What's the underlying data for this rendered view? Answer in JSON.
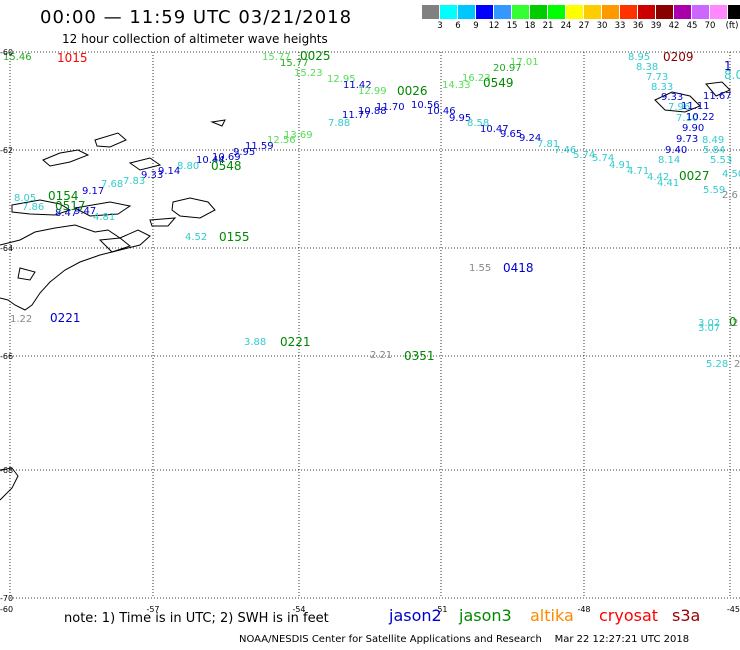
{
  "header": {
    "title": "00:00 — 11:59 UTC 03/21/2018",
    "subtitle": "12 hour collection of altimeter wave heights"
  },
  "colorbar": {
    "colors": [
      "#808080",
      "#00ffff",
      "#00c8ff",
      "#0000ff",
      "#3399ff",
      "#33ff33",
      "#00cc00",
      "#00ff00",
      "#ffff00",
      "#ffcc00",
      "#ff9900",
      "#ff3300",
      "#cc0000",
      "#880000",
      "#aa00aa",
      "#cc66ff",
      "#ff88ff",
      "#000000"
    ],
    "labels": [
      "3",
      "6",
      "9",
      "12",
      "15",
      "18",
      "21",
      "24",
      "27",
      "30",
      "33",
      "36",
      "39",
      "42",
      "45",
      "70",
      "(ft)"
    ]
  },
  "map": {
    "lat_labels": [
      "-60",
      "-62",
      "-64",
      "-66",
      "-68",
      "-70"
    ],
    "lon_labels": [
      "-60",
      "-57",
      "-54",
      "-51",
      "-48",
      "-45"
    ],
    "grid_lines": true
  },
  "observations": [
    {
      "text": "15.46",
      "color": "#22aa22"
    },
    {
      "text": "8.95",
      "color": "#33cccc"
    },
    {
      "text": "8.38",
      "color": "#33cccc"
    },
    {
      "text": "7.73",
      "color": "#33cccc"
    },
    {
      "text": "8.33",
      "color": "#33cccc"
    },
    {
      "text": "9.33",
      "color": "#0000cc"
    },
    {
      "text": "7.96",
      "color": "#33cccc"
    },
    {
      "text": "7.10",
      "color": "#33cccc"
    },
    {
      "text": "11.67",
      "color": "#0000cc"
    },
    {
      "text": "11.11",
      "color": "#0000cc"
    },
    {
      "text": "10.22",
      "color": "#0000cc"
    },
    {
      "text": "9.90",
      "color": "#0000cc"
    },
    {
      "text": "9.73",
      "color": "#0000cc"
    },
    {
      "text": "9.40",
      "color": "#0000cc"
    },
    {
      "text": "8.14",
      "color": "#33cccc"
    },
    {
      "text": "5.84",
      "color": "#33cccc"
    },
    {
      "text": "5.53",
      "color": "#33cccc"
    },
    {
      "text": "8.49",
      "color": "#33cccc"
    },
    {
      "text": "4.50",
      "color": "#33cccc"
    },
    {
      "text": "5.59",
      "color": "#33cccc"
    },
    {
      "text": "2.6",
      "color": "#888888"
    },
    {
      "text": "15.77",
      "color": "#55dd55"
    },
    {
      "text": "15.77",
      "color": "#22aa22"
    },
    {
      "text": "15.23",
      "color": "#55dd55"
    },
    {
      "text": "12.95",
      "color": "#55dd55"
    },
    {
      "text": "11.42",
      "color": "#0000cc"
    },
    {
      "text": "12.99",
      "color": "#55dd55"
    },
    {
      "text": "11.70",
      "color": "#0000cc"
    },
    {
      "text": "10.56",
      "color": "#0000cc"
    },
    {
      "text": "10.46",
      "color": "#0000cc"
    },
    {
      "text": "9.95",
      "color": "#0000cc"
    },
    {
      "text": "8.58",
      "color": "#33cccc"
    },
    {
      "text": "10.47",
      "color": "#0000cc"
    },
    {
      "text": "9.65",
      "color": "#0000cc"
    },
    {
      "text": "9.24",
      "color": "#0000cc"
    },
    {
      "text": "7.81",
      "color": "#33cccc"
    },
    {
      "text": "7.46",
      "color": "#33cccc"
    },
    {
      "text": "5.74",
      "color": "#33cccc"
    },
    {
      "text": "5.74",
      "color": "#33cccc"
    },
    {
      "text": "4.91",
      "color": "#33cccc"
    },
    {
      "text": "4.71",
      "color": "#33cccc"
    },
    {
      "text": "4.42",
      "color": "#33cccc"
    },
    {
      "text": "4.41",
      "color": "#33cccc"
    },
    {
      "text": "16.23",
      "color": "#55dd55"
    },
    {
      "text": "14.33",
      "color": "#55dd55"
    },
    {
      "text": "17.01",
      "color": "#55dd55"
    },
    {
      "text": "20.97",
      "color": "#22aa22"
    },
    {
      "text": "11.77",
      "color": "#0000cc"
    },
    {
      "text": "10.88",
      "color": "#0000cc"
    },
    {
      "text": "7.88",
      "color": "#33cccc"
    },
    {
      "text": "13.69",
      "color": "#55dd55"
    },
    {
      "text": "12.56",
      "color": "#55dd55"
    },
    {
      "text": "11.59",
      "color": "#0000cc"
    },
    {
      "text": "9.95",
      "color": "#0000cc"
    },
    {
      "text": "10.69",
      "color": "#0000cc"
    },
    {
      "text": "10.44",
      "color": "#0000cc"
    },
    {
      "text": "8.80",
      "color": "#33cccc"
    },
    {
      "text": "9.14",
      "color": "#0000cc"
    },
    {
      "text": "9.33",
      "color": "#0000cc"
    },
    {
      "text": "7.83",
      "color": "#33cccc"
    },
    {
      "text": "7.68",
      "color": "#33cccc"
    },
    {
      "text": "9.17",
      "color": "#0000cc"
    },
    {
      "text": "8.05",
      "color": "#33cccc"
    },
    {
      "text": "7.86",
      "color": "#33cccc"
    },
    {
      "text": "8.47",
      "color": "#0000cc"
    },
    {
      "text": "9.47",
      "color": "#0000cc"
    },
    {
      "text": "4.81",
      "color": "#33cccc"
    },
    {
      "text": "4.52",
      "color": "#33cccc"
    },
    {
      "text": "1.55",
      "color": "#888888"
    },
    {
      "text": "1.22",
      "color": "#888888"
    },
    {
      "text": "3.88",
      "color": "#33cccc"
    },
    {
      "text": "2.21",
      "color": "#888888"
    },
    {
      "text": "3.02",
      "color": "#33cccc"
    },
    {
      "text": "3.07",
      "color": "#33cccc"
    },
    {
      "text": "5.28",
      "color": "#33cccc"
    },
    {
      "text": "2",
      "color": "#888888"
    },
    {
      "text": "2",
      "color": "#888888"
    }
  ],
  "time_labels": [
    {
      "text": "1015",
      "color": "#ff0000"
    },
    {
      "text": "0025",
      "color": "#008800"
    },
    {
      "text": "0209",
      "color": "#880000"
    },
    {
      "text": "0026",
      "color": "#008800"
    },
    {
      "text": "0549",
      "color": "#008800"
    },
    {
      "text": "0548",
      "color": "#008800"
    },
    {
      "text": "0154",
      "color": "#008800"
    },
    {
      "text": "0517",
      "color": "#008800"
    },
    {
      "text": "0155",
      "color": "#008800"
    },
    {
      "text": "0027",
      "color": "#008800"
    },
    {
      "text": "0418",
      "color": "#0000cc"
    },
    {
      "text": "0221",
      "color": "#0000cc"
    },
    {
      "text": "0221",
      "color": "#008800"
    },
    {
      "text": "0351",
      "color": "#008800"
    },
    {
      "text": "0",
      "color": "#008800"
    },
    {
      "text": "1",
      "color": "#0000cc"
    },
    {
      "text": "8.0",
      "color": "#33cccc"
    }
  ],
  "footer": {
    "note": "note: 1) Time is in UTC; 2) SWH is in feet",
    "satellites": [
      {
        "name": "jason2",
        "color": "#0000cc"
      },
      {
        "name": "jason3",
        "color": "#008800"
      },
      {
        "name": "altika",
        "color": "#ff8800"
      },
      {
        "name": "cryosat",
        "color": "#ff0000"
      },
      {
        "name": "s3a",
        "color": "#990000"
      }
    ],
    "credit": "NOAA/NESDIS Center for Satellite Applications and Research    Mar 22 12:27:21 UTC 2018"
  }
}
